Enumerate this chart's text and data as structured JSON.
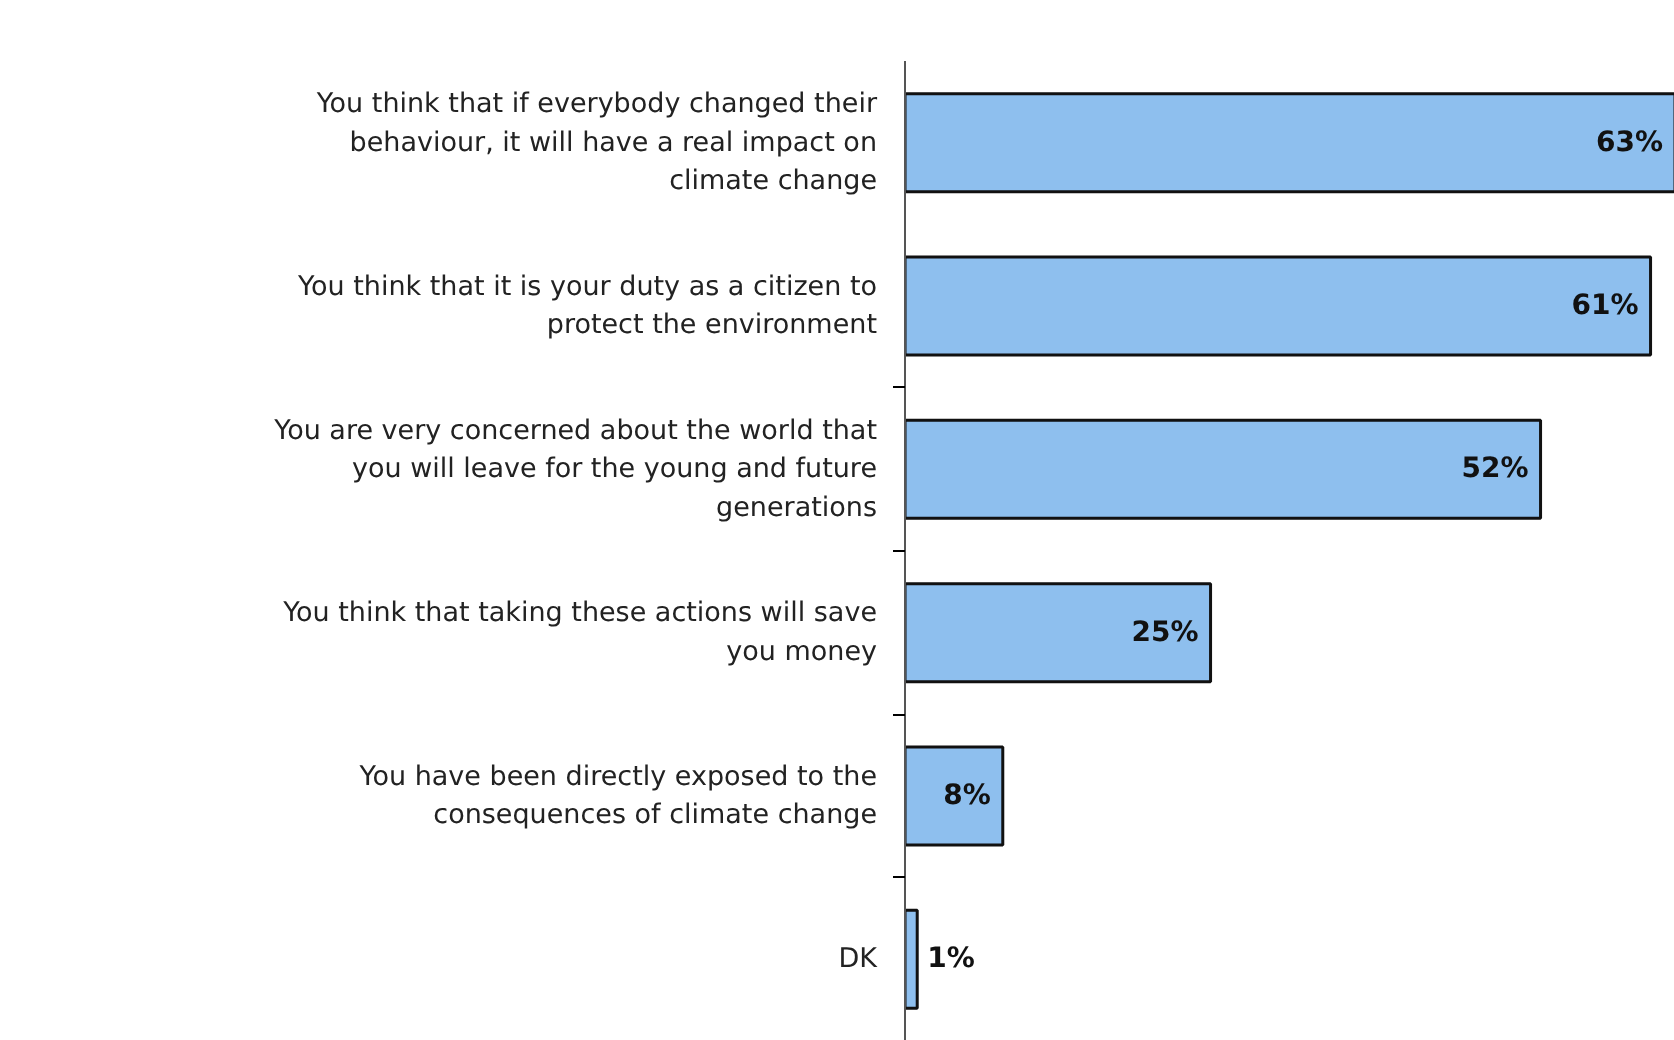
{
  "chart_data": {
    "type": "bar",
    "orientation": "horizontal",
    "data_labels": true,
    "categories": [
      "You think that if everybody changed their behaviour, it will have a real impact on climate change",
      "You think that it is your duty as a citizen to protect the environment",
      "You are very concerned about the world that you will leave for the young and future generations",
      "You think that taking these actions will save you money",
      "You have been directly exposed to the consequences of climate change",
      "DK"
    ],
    "values": [
      63,
      61,
      52,
      25,
      8,
      1
    ],
    "value_labels": [
      "63%",
      "61%",
      "52%",
      "25%",
      "8%",
      "1%"
    ],
    "color": "#8ebfee"
  }
}
